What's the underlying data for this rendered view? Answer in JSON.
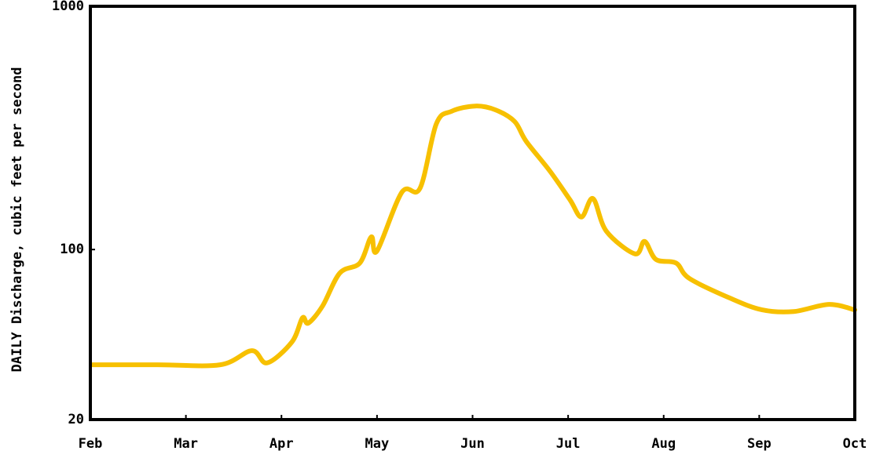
{
  "chart_data": {
    "type": "line",
    "y_label": "DAILY Discharge, cubic feet per second",
    "ylog": true,
    "ylim": [
      20,
      1000
    ],
    "yticks": [
      20,
      100,
      1000
    ],
    "xlim": [
      0,
      8
    ],
    "xticks": [
      {
        "value": 0,
        "label": "Feb"
      },
      {
        "value": 1,
        "label": "Mar"
      },
      {
        "value": 2,
        "label": "Apr"
      },
      {
        "value": 3,
        "label": "May"
      },
      {
        "value": 4,
        "label": "Jun"
      },
      {
        "value": 5,
        "label": "Jul"
      },
      {
        "value": 6,
        "label": "Aug"
      },
      {
        "value": 7,
        "label": "Sep"
      },
      {
        "value": 8,
        "label": "Oct"
      }
    ],
    "x": [
      0.02,
      0.7,
      1.36,
      1.69,
      1.85,
      2.11,
      2.22,
      2.28,
      2.43,
      2.61,
      2.82,
      2.94,
      3.0,
      3.26,
      3.45,
      3.62,
      3.78,
      4.03,
      4.24,
      4.44,
      4.56,
      4.81,
      5.02,
      5.14,
      5.26,
      5.4,
      5.7,
      5.8,
      5.92,
      6.13,
      6.27,
      6.7,
      7.03,
      7.36,
      7.73,
      8.0
    ],
    "series": [
      {
        "color": "#f7c000",
        "values": [
          33.6,
          33.6,
          33.6,
          38.4,
          34.2,
          41.7,
          52.4,
          49.8,
          58.6,
          80,
          88,
          112.7,
          98.6,
          172,
          178.6,
          328,
          370,
          389,
          375,
          336,
          279,
          210,
          160,
          136,
          162,
          119,
          96,
          108,
          91,
          88,
          76,
          63,
          56.5,
          55.6,
          59.5,
          56.5
        ]
      }
    ]
  }
}
